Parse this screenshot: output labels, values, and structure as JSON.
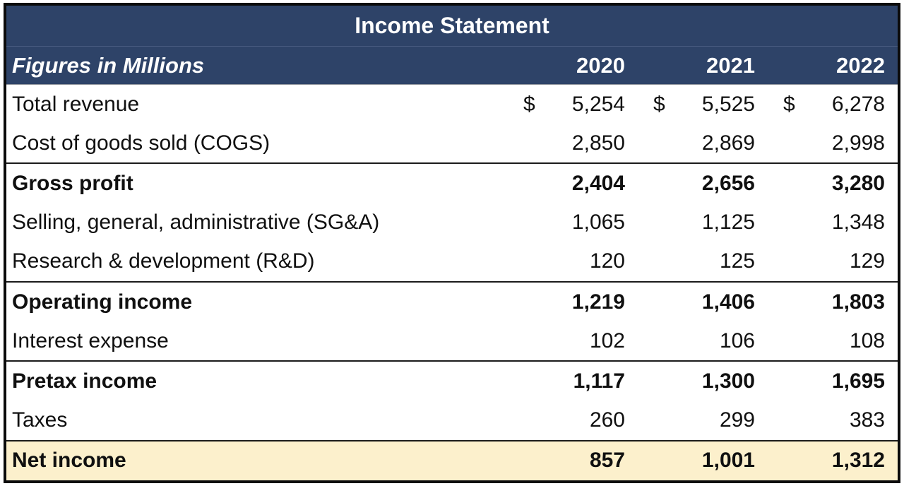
{
  "table": {
    "title": "Income Statement",
    "subtitle": "Figures in Millions",
    "currency_symbol": "$",
    "columns": [
      "2020",
      "2021",
      "2022"
    ],
    "rows": [
      {
        "label": "Total revenue",
        "values": [
          "5,254",
          "5,525",
          "6,278"
        ],
        "bold": false,
        "topline": false,
        "highlight": false,
        "currency": true
      },
      {
        "label": "Cost of goods sold (COGS)",
        "values": [
          "2,850",
          "2,869",
          "2,998"
        ],
        "bold": false,
        "topline": false,
        "highlight": false,
        "currency": false
      },
      {
        "label": "Gross profit",
        "values": [
          "2,404",
          "2,656",
          "3,280"
        ],
        "bold": true,
        "topline": true,
        "highlight": false,
        "currency": false
      },
      {
        "label": "Selling, general, administrative (SG&A)",
        "values": [
          "1,065",
          "1,125",
          "1,348"
        ],
        "bold": false,
        "topline": false,
        "highlight": false,
        "currency": false
      },
      {
        "label": "Research & development (R&D)",
        "values": [
          "120",
          "125",
          "129"
        ],
        "bold": false,
        "topline": false,
        "highlight": false,
        "currency": false
      },
      {
        "label": "Operating income",
        "values": [
          "1,219",
          "1,406",
          "1,803"
        ],
        "bold": true,
        "topline": true,
        "highlight": false,
        "currency": false
      },
      {
        "label": "Interest expense",
        "values": [
          "102",
          "106",
          "108"
        ],
        "bold": false,
        "topline": false,
        "highlight": false,
        "currency": false
      },
      {
        "label": "Pretax income",
        "values": [
          "1,117",
          "1,300",
          "1,695"
        ],
        "bold": true,
        "topline": true,
        "highlight": false,
        "currency": false
      },
      {
        "label": "Taxes",
        "values": [
          "260",
          "299",
          "383"
        ],
        "bold": false,
        "topline": false,
        "highlight": false,
        "currency": false
      },
      {
        "label": "Net income",
        "values": [
          "857",
          "1,001",
          "1,312"
        ],
        "bold": true,
        "topline": true,
        "highlight": true,
        "currency": false
      }
    ],
    "colors": {
      "header_bg": "#2E4368",
      "header_text": "#FFFFFF",
      "highlight_bg": "#FCF0CC",
      "border": "#0B0B0B",
      "subtotal_line": "#1B1B1B",
      "body_text": "#101010"
    }
  }
}
